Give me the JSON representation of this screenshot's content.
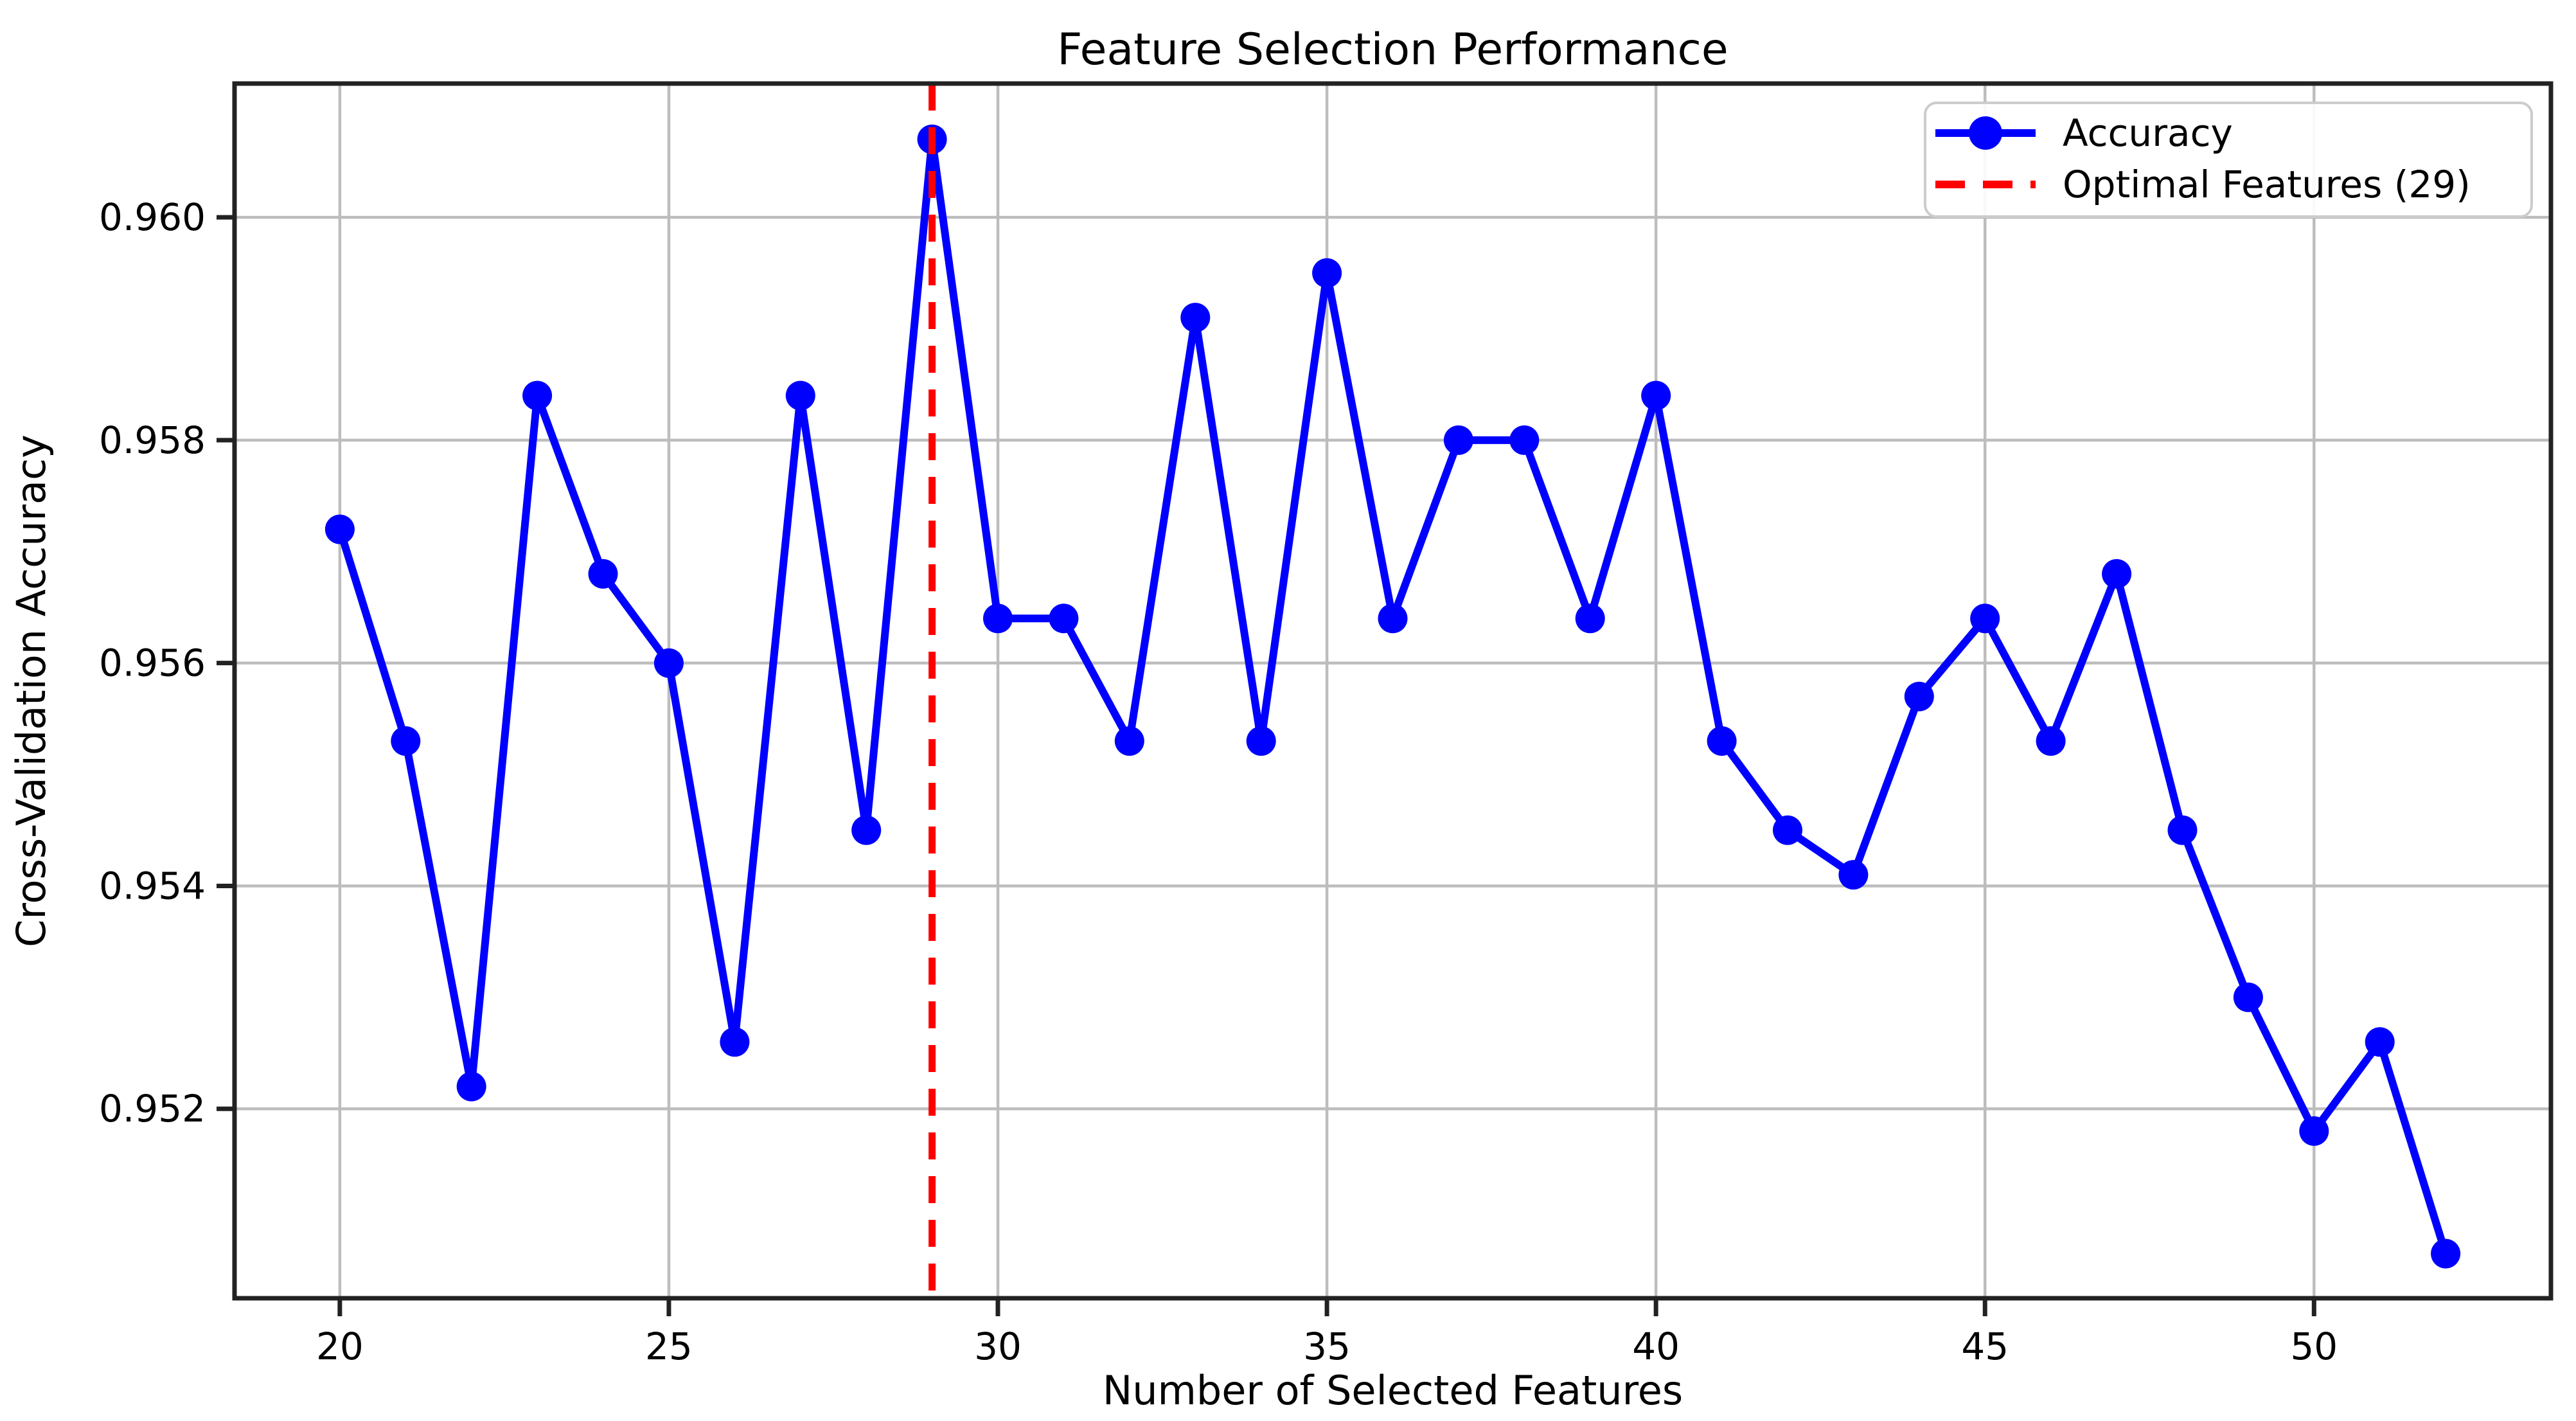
{
  "figure": {
    "background": "#ffffff"
  },
  "chart_data": {
    "type": "line",
    "title": "Feature Selection Performance",
    "xlabel": "Number of Selected Features",
    "ylabel": "Cross-Validation Accuracy",
    "x": [
      20,
      21,
      22,
      23,
      24,
      25,
      26,
      27,
      28,
      29,
      30,
      31,
      32,
      33,
      34,
      35,
      36,
      37,
      38,
      39,
      40,
      41,
      42,
      43,
      44,
      45,
      46,
      47,
      48,
      49,
      50,
      51,
      52
    ],
    "series": [
      {
        "name": "Accuracy",
        "color": "#0000ff",
        "marker": "circle",
        "values": [
          0.9572,
          0.9553,
          0.9522,
          0.9584,
          0.9568,
          0.956,
          0.9526,
          0.9584,
          0.9545,
          0.9607,
          0.9564,
          0.9564,
          0.9553,
          0.9591,
          0.9553,
          0.9595,
          0.9564,
          0.958,
          0.958,
          0.9564,
          0.9584,
          0.9553,
          0.9545,
          0.9541,
          0.9557,
          0.9564,
          0.9553,
          0.9568,
          0.9545,
          0.953,
          0.9518,
          0.9526,
          0.9507
        ]
      }
    ],
    "vline": {
      "x": 29,
      "label": "Optimal Features (29)",
      "color": "#ff0000",
      "style": "dashed"
    },
    "xlim": [
      18.4,
      53.6
    ],
    "ylim": [
      0.9503,
      0.9612
    ],
    "xticks": [
      20,
      25,
      30,
      35,
      40,
      45,
      50
    ],
    "xtick_labels": [
      "20",
      "25",
      "30",
      "35",
      "40",
      "45",
      "50"
    ],
    "yticks": [
      0.952,
      0.954,
      0.956,
      0.958,
      0.96
    ],
    "ytick_labels": [
      "0.952",
      "0.954",
      "0.956",
      "0.958",
      "0.960"
    ],
    "grid": true,
    "grid_color": "#bdbdbd",
    "axis_color": "#222222",
    "legend_position": "upper right",
    "legend_border_color": "#cccccc"
  }
}
